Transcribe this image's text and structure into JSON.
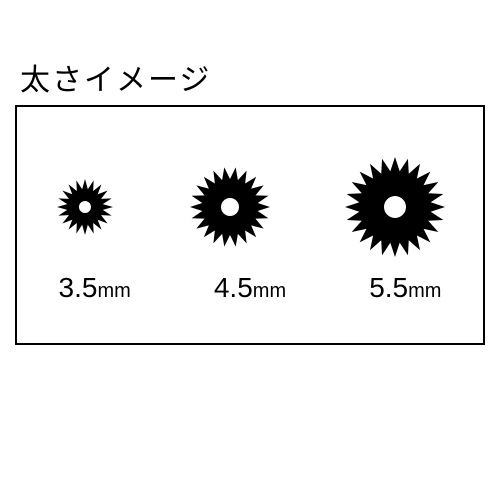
{
  "title": "太さイメージ",
  "title_fontsize": 30,
  "frame": {
    "border_color": "#000000",
    "border_width": 2,
    "background": "#ffffff"
  },
  "gears": [
    {
      "label_number": "3.5",
      "label_unit": "mm",
      "outer_radius": 28,
      "inner_radius": 18,
      "hole_radius": 6,
      "teeth": 20,
      "color": "#000000",
      "svg_size": 70
    },
    {
      "label_number": "4.5",
      "label_unit": "mm",
      "outer_radius": 40,
      "inner_radius": 28,
      "hole_radius": 9,
      "teeth": 22,
      "color": "#000000",
      "svg_size": 90
    },
    {
      "label_number": "5.5",
      "label_unit": "mm",
      "outer_radius": 50,
      "inner_radius": 36,
      "hole_radius": 11,
      "teeth": 24,
      "color": "#000000",
      "svg_size": 110
    }
  ],
  "label_fontsize_number": 28,
  "label_fontsize_unit": 20,
  "text_color": "#000000"
}
